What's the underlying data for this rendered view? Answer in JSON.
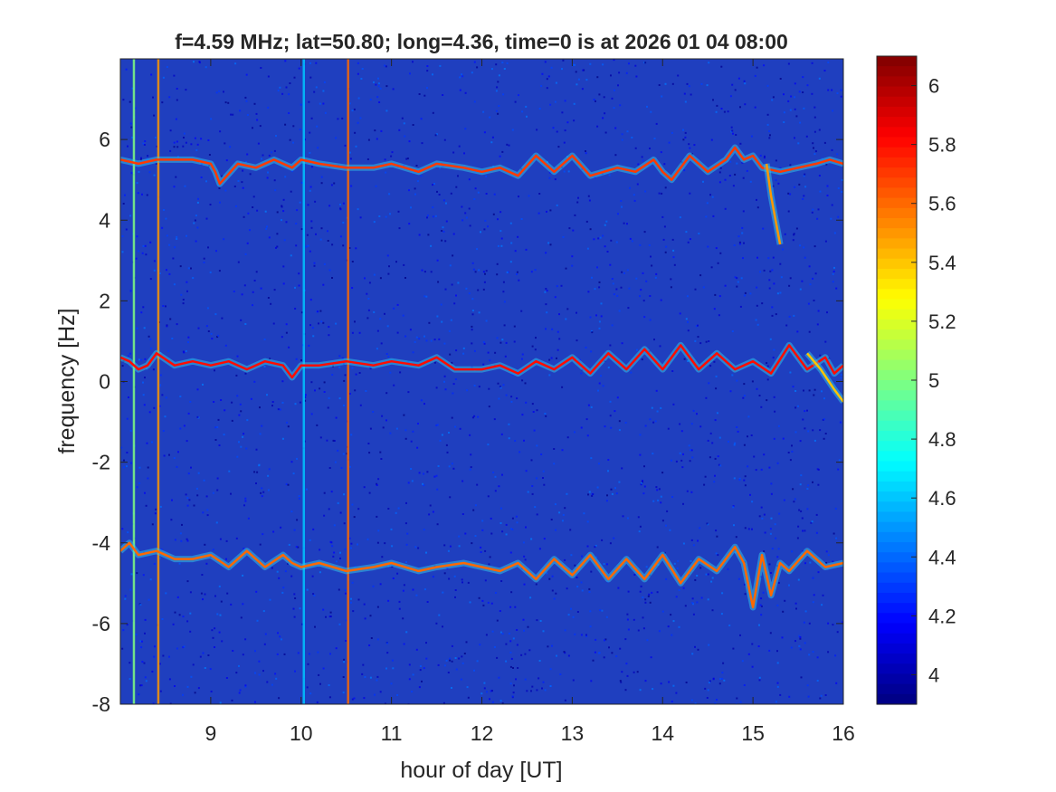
{
  "chart_data": {
    "type": "heatmap",
    "title": "f=4.59 MHz;  lat=50.80; long=4.36, time=0 is at 2026 01 04 08:00",
    "xlabel": "hour of day [UT]",
    "ylabel": "frequency [Hz]",
    "xlim": [
      8,
      16
    ],
    "ylim": [
      -8,
      8
    ],
    "xticks": [
      9,
      10,
      11,
      12,
      13,
      14,
      15,
      16
    ],
    "yticks": [
      -8,
      -6,
      -4,
      -2,
      0,
      2,
      4,
      6
    ],
    "colorbar": {
      "colormap": "jet",
      "range": [
        3.9,
        6.1
      ],
      "ticks": [
        4,
        4.2,
        4.4,
        4.6,
        4.8,
        5,
        5.2,
        5.4,
        5.6,
        5.8,
        6
      ]
    },
    "background_level": 4.1,
    "traces": [
      {
        "x": [
          8.0,
          8.2,
          8.4,
          8.6,
          8.8,
          9.0,
          9.05,
          9.1,
          9.3,
          9.5,
          9.7,
          9.9,
          10.0,
          10.2,
          10.5,
          10.8,
          11.0,
          11.3,
          11.5,
          11.8,
          12.0,
          12.2,
          12.4,
          12.6,
          12.8,
          13.0,
          13.2,
          13.5,
          13.7,
          13.9,
          14.0,
          14.1,
          14.3,
          14.5,
          14.7,
          14.8,
          14.9,
          15.0,
          15.1,
          15.3,
          15.5,
          15.7,
          15.85,
          16.0
        ],
        "y": [
          5.5,
          5.4,
          5.5,
          5.5,
          5.5,
          5.4,
          5.2,
          4.9,
          5.4,
          5.3,
          5.5,
          5.3,
          5.5,
          5.4,
          5.3,
          5.3,
          5.4,
          5.2,
          5.4,
          5.3,
          5.2,
          5.3,
          5.1,
          5.6,
          5.2,
          5.6,
          5.1,
          5.3,
          5.2,
          5.5,
          5.2,
          5.0,
          5.6,
          5.2,
          5.5,
          5.8,
          5.5,
          5.6,
          5.3,
          5.2,
          5.3,
          5.4,
          5.5,
          5.4
        ],
        "level": 5.7
      },
      {
        "x": [
          15.15,
          15.2,
          15.25,
          15.3
        ],
        "y": [
          5.4,
          4.6,
          4.0,
          3.4
        ],
        "level": 5.5
      },
      {
        "x": [
          8.0,
          8.1,
          8.2,
          8.3,
          8.4,
          8.6,
          8.8,
          9.0,
          9.2,
          9.4,
          9.6,
          9.8,
          9.9,
          10.0,
          10.2,
          10.5,
          10.8,
          11.0,
          11.3,
          11.5,
          11.7,
          12.0,
          12.2,
          12.4,
          12.6,
          12.8,
          13.0,
          13.2,
          13.4,
          13.6,
          13.8,
          14.0,
          14.2,
          14.4,
          14.6,
          14.8,
          15.0,
          15.2,
          15.4,
          15.6,
          15.8,
          15.9,
          16.0
        ],
        "y": [
          0.6,
          0.5,
          0.3,
          0.4,
          0.7,
          0.4,
          0.5,
          0.4,
          0.5,
          0.3,
          0.5,
          0.4,
          0.1,
          0.4,
          0.4,
          0.5,
          0.4,
          0.5,
          0.4,
          0.6,
          0.3,
          0.3,
          0.4,
          0.2,
          0.5,
          0.3,
          0.6,
          0.2,
          0.7,
          0.3,
          0.8,
          0.3,
          0.9,
          0.3,
          0.7,
          0.3,
          0.5,
          0.2,
          0.9,
          0.3,
          0.6,
          0.2,
          0.4
        ],
        "level": 5.8
      },
      {
        "x": [
          15.6,
          15.75,
          15.9,
          16.0
        ],
        "y": [
          0.7,
          0.3,
          -0.2,
          -0.5
        ],
        "level": 5.4
      },
      {
        "x": [
          8.0,
          8.1,
          8.2,
          8.4,
          8.6,
          8.8,
          9.0,
          9.2,
          9.4,
          9.6,
          9.8,
          9.9,
          10.0,
          10.2,
          10.5,
          10.8,
          11.0,
          11.3,
          11.5,
          11.8,
          12.0,
          12.2,
          12.4,
          12.6,
          12.8,
          13.0,
          13.2,
          13.4,
          13.6,
          13.8,
          14.0,
          14.2,
          14.4,
          14.6,
          14.8,
          14.9,
          15.0,
          15.1,
          15.2,
          15.3,
          15.4,
          15.6,
          15.8,
          16.0
        ],
        "y": [
          -4.2,
          -4.0,
          -4.3,
          -4.2,
          -4.4,
          -4.4,
          -4.3,
          -4.6,
          -4.2,
          -4.6,
          -4.3,
          -4.5,
          -4.6,
          -4.5,
          -4.7,
          -4.6,
          -4.5,
          -4.7,
          -4.6,
          -4.5,
          -4.6,
          -4.7,
          -4.5,
          -4.9,
          -4.4,
          -4.8,
          -4.3,
          -4.9,
          -4.4,
          -4.9,
          -4.3,
          -5.0,
          -4.4,
          -4.7,
          -4.1,
          -4.5,
          -5.6,
          -4.3,
          -5.3,
          -4.5,
          -4.7,
          -4.2,
          -4.6,
          -4.5
        ],
        "level": 5.6
      }
    ],
    "vertical_lines": [
      {
        "x": 8.15,
        "level": 5.0
      },
      {
        "x": 8.42,
        "level": 5.5
      },
      {
        "x": 10.03,
        "level": 4.6
      },
      {
        "x": 10.52,
        "level": 5.6
      }
    ]
  }
}
